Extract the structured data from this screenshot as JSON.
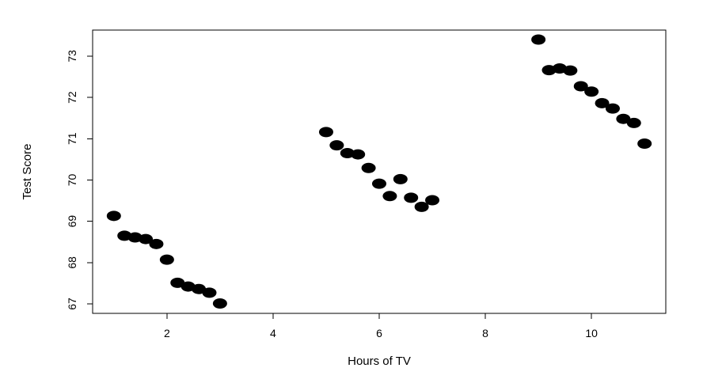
{
  "chart_data": {
    "type": "scatter",
    "title": "",
    "xlabel": "Hours of TV",
    "ylabel": "Test Score",
    "xlim": [
      0.6,
      11.4
    ],
    "ylim": [
      66.77,
      73.63
    ],
    "xticks": [
      "2",
      "4",
      "6",
      "8",
      "10"
    ],
    "yticks": [
      "67",
      "68",
      "69",
      "70",
      "71",
      "72",
      "73"
    ],
    "grid": false,
    "legend": "none",
    "marker_color": "#000000",
    "series": [
      {
        "x": [
          1.0,
          1.2,
          1.4,
          1.6,
          1.8,
          2.0,
          2.2,
          2.4,
          2.6,
          2.8,
          3.0,
          5.0,
          5.2,
          5.4,
          5.6,
          5.8,
          6.0,
          6.2,
          6.4,
          6.6,
          6.8,
          7.0,
          9.0,
          9.2,
          9.4,
          9.6,
          9.8,
          10.0,
          10.2,
          10.4,
          10.6,
          10.8,
          11.0
        ],
        "y": [
          69.13,
          68.65,
          68.61,
          68.57,
          68.45,
          68.07,
          67.51,
          67.42,
          67.36,
          67.27,
          67.01,
          71.16,
          70.84,
          70.65,
          70.62,
          70.29,
          69.91,
          69.61,
          70.02,
          69.57,
          69.35,
          69.51,
          73.4,
          72.66,
          72.7,
          72.65,
          72.27,
          72.14,
          71.86,
          71.73,
          71.48,
          71.38,
          70.88
        ]
      }
    ]
  }
}
